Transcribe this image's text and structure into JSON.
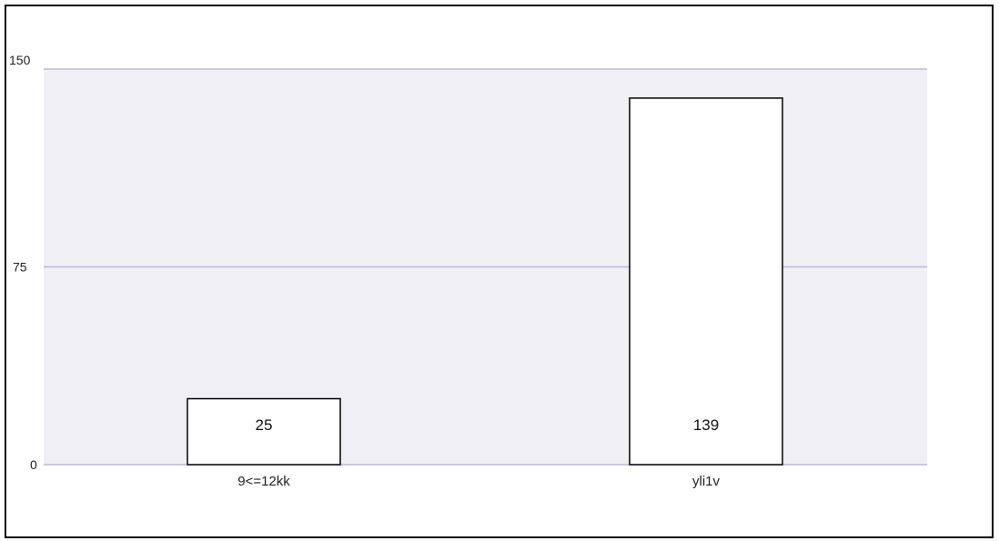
{
  "chart_data": {
    "type": "bar",
    "categories": [
      "9<=12kk",
      "yli1v"
    ],
    "values": [
      25,
      139
    ],
    "ylim": [
      0,
      150
    ],
    "yticks": [
      0,
      75,
      150
    ],
    "grid": true,
    "legend": "none",
    "colors": {
      "plot_background": "#f0eff5",
      "gridline": "#b9b8d6",
      "bar_fill": "#ffffff",
      "bar_stroke": "#000000",
      "frame": "#000000"
    }
  }
}
